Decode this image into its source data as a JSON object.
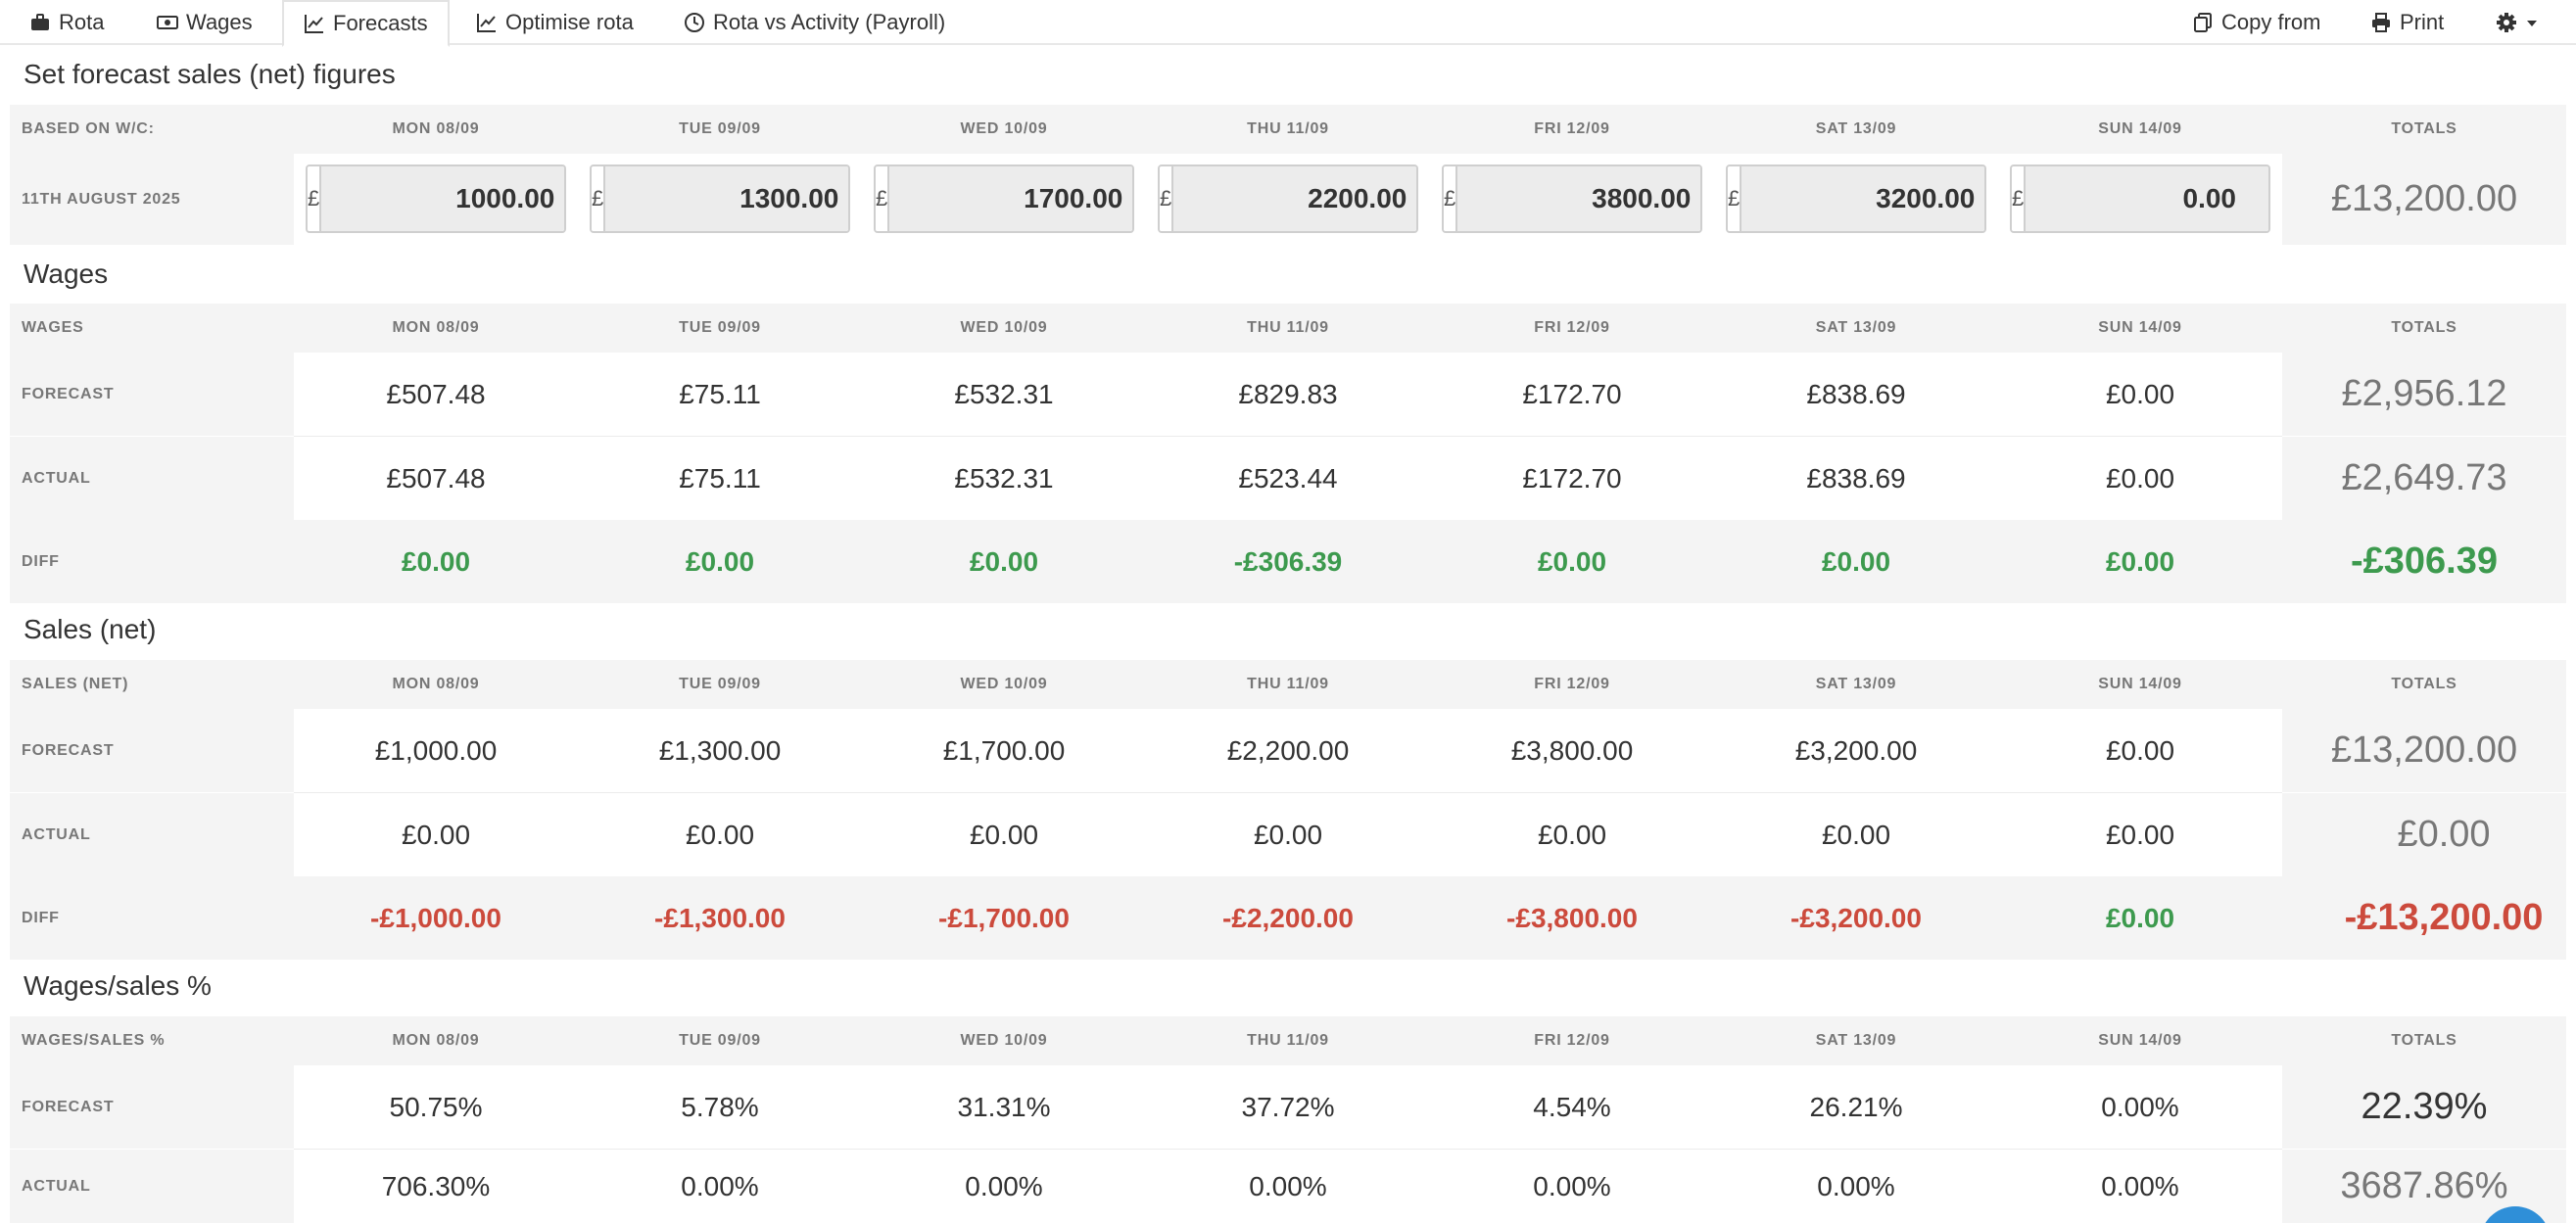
{
  "nav": {
    "tabs": [
      {
        "label": "Rota",
        "icon": "briefcase-icon"
      },
      {
        "label": "Wages",
        "icon": "money-icon"
      },
      {
        "label": "Forecasts",
        "icon": "line-chart-icon"
      },
      {
        "label": "Optimise rota",
        "icon": "line-chart-icon"
      },
      {
        "label": "Rota vs Activity (Payroll)",
        "icon": "clock-icon"
      }
    ],
    "active_tab": "Forecasts",
    "copy_from_label": "Copy from",
    "print_label": "Print",
    "settings_icon": "gear-icon"
  },
  "days": [
    "MON 08/09",
    "TUE 09/09",
    "WED 10/09",
    "THU 11/09",
    "FRI 12/09",
    "SAT 13/09",
    "SUN 14/09"
  ],
  "totals_header": "TOTALS",
  "forecast_input": {
    "title": "Set forecast sales (net) figures",
    "based_on_label": "BASED ON W/C:",
    "week_label": "11TH AUGUST 2025",
    "currency": "£",
    "values": [
      "1000.00",
      "1300.00",
      "1700.00",
      "2200.00",
      "3800.00",
      "3200.00",
      "0.00"
    ],
    "total": "£13,200.00"
  },
  "wages": {
    "title": "Wages",
    "header_label": "WAGES",
    "rows": {
      "forecast": {
        "label": "FORECAST",
        "values": [
          "£507.48",
          "£75.11",
          "£532.31",
          "£829.83",
          "£172.70",
          "£838.69",
          "£0.00"
        ],
        "total": "£2,956.12"
      },
      "actual": {
        "label": "ACTUAL",
        "values": [
          "£507.48",
          "£75.11",
          "£532.31",
          "£523.44",
          "£172.70",
          "£838.69",
          "£0.00"
        ],
        "total": "£2,649.73"
      },
      "diff": {
        "label": "DIFF",
        "values": [
          "£0.00",
          "£0.00",
          "£0.00",
          "-£306.39",
          "£0.00",
          "£0.00",
          "£0.00"
        ],
        "total": "-£306.39"
      }
    }
  },
  "sales": {
    "title": "Sales (net)",
    "header_label": "SALES (NET)",
    "rows": {
      "forecast": {
        "label": "FORECAST",
        "values": [
          "£1,000.00",
          "£1,300.00",
          "£1,700.00",
          "£2,200.00",
          "£3,800.00",
          "£3,200.00",
          "£0.00"
        ],
        "total": "£13,200.00"
      },
      "actual": {
        "label": "ACTUAL",
        "values": [
          "£0.00",
          "£0.00",
          "£0.00",
          "£0.00",
          "£0.00",
          "£0.00",
          "£0.00"
        ],
        "total": "£0.00"
      },
      "diff": {
        "label": "DIFF",
        "values": [
          "-£1,000.00",
          "-£1,300.00",
          "-£1,700.00",
          "-£2,200.00",
          "-£3,800.00",
          "-£3,200.00",
          "£0.00"
        ],
        "total": "-£13,200.00"
      }
    }
  },
  "wages_sales": {
    "title": "Wages/sales %",
    "header_label": "WAGES/SALES %",
    "rows": {
      "forecast": {
        "label": "FORECAST",
        "values": [
          "50.75%",
          "5.78%",
          "31.31%",
          "37.72%",
          "4.54%",
          "26.21%",
          "0.00%"
        ],
        "total": "22.39%"
      },
      "actual": {
        "label": "ACTUAL",
        "values": [
          "706.30%",
          "0.00%",
          "0.00%",
          "0.00%",
          "0.00%",
          "0.00%",
          "0.00%"
        ],
        "total": "3687.86%"
      }
    }
  },
  "colors": {
    "positive": "#3d9a4e",
    "negative": "#cc4a3c",
    "muted": "#777777",
    "panel": "#f4f4f4"
  }
}
